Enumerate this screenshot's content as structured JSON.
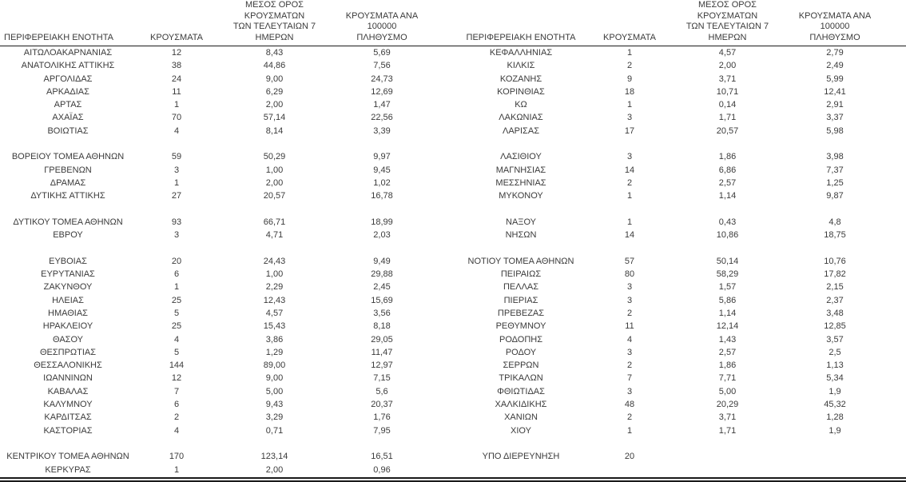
{
  "report": {
    "headers": {
      "region": "ΠΕΡΙΦΕΡΕΙΑΚΗ ΕΝΟΤΗΤΑ",
      "cases": "ΚΡΟΥΣΜΑΤΑ",
      "avg7": "ΜΕΣΟΣ ΟΡΟΣ ΚΡΟΥΣΜΑΤΩΝ\nΤΩΝ ΤΕΛΕΥΤΑΙΩΝ 7\nΗΜΕΡΩΝ",
      "per100k": "ΚΡΟΥΣΜΑΤΑ ΑΝΑ 100000\nΠΛΗΘΥΣΜΟ"
    },
    "columns": [
      "region",
      "cases",
      "avg7",
      "per100k"
    ],
    "colors": {
      "text": "#3b3b3b",
      "rule": "#1a1a1a",
      "background": "#ffffff"
    },
    "left_rows": [
      {
        "region": "ΑΙΤΩΛΟΑΚΑΡΝΑΝΙΑΣ",
        "cases": "12",
        "avg7": "8,43",
        "per100k": "5,69"
      },
      {
        "region": "ΑΝΑΤΟΛΙΚΗΣ ΑΤΤΙΚΗΣ",
        "cases": "38",
        "avg7": "44,86",
        "per100k": "7,56"
      },
      {
        "region": "ΑΡΓΟΛΙΔΑΣ",
        "cases": "24",
        "avg7": "9,00",
        "per100k": "24,73"
      },
      {
        "region": "ΑΡΚΑΔΙΑΣ",
        "cases": "11",
        "avg7": "6,29",
        "per100k": "12,69"
      },
      {
        "region": "ΑΡΤΑΣ",
        "cases": "1",
        "avg7": "2,00",
        "per100k": "1,47"
      },
      {
        "region": "ΑΧΑΪΑΣ",
        "cases": "70",
        "avg7": "57,14",
        "per100k": "22,56"
      },
      {
        "region": "ΒΟΙΩΤΙΑΣ",
        "cases": "4",
        "avg7": "8,14",
        "per100k": "3,39"
      },
      null,
      {
        "region": "ΒΟΡΕΙΟΥ ΤΟΜΕΑ ΑΘΗΝΩΝ",
        "cases": "59",
        "avg7": "50,29",
        "per100k": "9,97"
      },
      {
        "region": "ΓΡΕΒΕΝΩΝ",
        "cases": "3",
        "avg7": "1,00",
        "per100k": "9,45"
      },
      {
        "region": "ΔΡΑΜΑΣ",
        "cases": "1",
        "avg7": "2,00",
        "per100k": "1,02"
      },
      {
        "region": "ΔΥΤΙΚΗΣ ΑΤΤΙΚΗΣ",
        "cases": "27",
        "avg7": "20,57",
        "per100k": "16,78"
      },
      null,
      {
        "region": "ΔΥΤΙΚΟΥ ΤΟΜΕΑ ΑΘΗΝΩΝ",
        "cases": "93",
        "avg7": "66,71",
        "per100k": "18,99"
      },
      {
        "region": "ΕΒΡΟΥ",
        "cases": "3",
        "avg7": "4,71",
        "per100k": "2,03"
      },
      null,
      {
        "region": "ΕΥΒΟΙΑΣ",
        "cases": "20",
        "avg7": "24,43",
        "per100k": "9,49"
      },
      {
        "region": "ΕΥΡΥΤΑΝΙΑΣ",
        "cases": "6",
        "avg7": "1,00",
        "per100k": "29,88"
      },
      {
        "region": "ΖΑΚΥΝΘΟΥ",
        "cases": "1",
        "avg7": "2,29",
        "per100k": "2,45"
      },
      {
        "region": "ΗΛΕΙΑΣ",
        "cases": "25",
        "avg7": "12,43",
        "per100k": "15,69"
      },
      {
        "region": "ΗΜΑΘΙΑΣ",
        "cases": "5",
        "avg7": "4,57",
        "per100k": "3,56"
      },
      {
        "region": "ΗΡΑΚΛΕΙΟΥ",
        "cases": "25",
        "avg7": "15,43",
        "per100k": "8,18"
      },
      {
        "region": "ΘΑΣΟΥ",
        "cases": "4",
        "avg7": "3,86",
        "per100k": "29,05"
      },
      {
        "region": "ΘΕΣΠΡΩΤΙΑΣ",
        "cases": "5",
        "avg7": "1,29",
        "per100k": "11,47"
      },
      {
        "region": "ΘΕΣΣΑΛΟΝΙΚΗΣ",
        "cases": "144",
        "avg7": "89,00",
        "per100k": "12,97"
      },
      {
        "region": "ΙΩΑΝΝΙΝΩΝ",
        "cases": "12",
        "avg7": "9,00",
        "per100k": "7,15"
      },
      {
        "region": "ΚΑΒΑΛΑΣ",
        "cases": "7",
        "avg7": "5,00",
        "per100k": "5,6"
      },
      {
        "region": "ΚΑΛΥΜΝΟΥ",
        "cases": "6",
        "avg7": "9,43",
        "per100k": "20,37"
      },
      {
        "region": "ΚΑΡΔΙΤΣΑΣ",
        "cases": "2",
        "avg7": "3,29",
        "per100k": "1,76"
      },
      {
        "region": "ΚΑΣΤΟΡΙΑΣ",
        "cases": "4",
        "avg7": "0,71",
        "per100k": "7,95"
      },
      null,
      {
        "region": "ΚΕΝΤΡΙΚΟΥ ΤΟΜΕΑ ΑΘΗΝΩΝ",
        "cases": "170",
        "avg7": "123,14",
        "per100k": "16,51"
      },
      {
        "region": "ΚΕΡΚΥΡΑΣ",
        "cases": "1",
        "avg7": "2,00",
        "per100k": "0,96"
      }
    ],
    "right_rows": [
      {
        "region": "ΚΕΦΑΛΛΗΝΙΑΣ",
        "cases": "1",
        "avg7": "4,57",
        "per100k": "2,79"
      },
      {
        "region": "ΚΙΛΚΙΣ",
        "cases": "2",
        "avg7": "2,00",
        "per100k": "2,49"
      },
      {
        "region": "ΚΟΖΑΝΗΣ",
        "cases": "9",
        "avg7": "3,71",
        "per100k": "5,99"
      },
      {
        "region": "ΚΟΡΙΝΘΙΑΣ",
        "cases": "18",
        "avg7": "10,71",
        "per100k": "12,41"
      },
      {
        "region": "ΚΩ",
        "cases": "1",
        "avg7": "0,14",
        "per100k": "2,91"
      },
      {
        "region": "ΛΑΚΩΝΙΑΣ",
        "cases": "3",
        "avg7": "1,71",
        "per100k": "3,37"
      },
      {
        "region": "ΛΑΡΙΣΑΣ",
        "cases": "17",
        "avg7": "20,57",
        "per100k": "5,98"
      },
      null,
      {
        "region": "ΛΑΣΙΘΙΟΥ",
        "cases": "3",
        "avg7": "1,86",
        "per100k": "3,98"
      },
      {
        "region": "ΜΑΓΝΗΣΙΑΣ",
        "cases": "14",
        "avg7": "6,86",
        "per100k": "7,37"
      },
      {
        "region": "ΜΕΣΣΗΝΙΑΣ",
        "cases": "2",
        "avg7": "2,57",
        "per100k": "1,25"
      },
      {
        "region": "ΜΥΚΟΝΟΥ",
        "cases": "1",
        "avg7": "1,14",
        "per100k": "9,87"
      },
      null,
      {
        "region": "ΝΑΞΟΥ",
        "cases": "1",
        "avg7": "0,43",
        "per100k": "4,8"
      },
      {
        "region": "ΝΗΣΩΝ",
        "cases": "14",
        "avg7": "10,86",
        "per100k": "18,75"
      },
      null,
      {
        "region": "ΝΟΤΙΟΥ ΤΟΜΕΑ ΑΘΗΝΩΝ",
        "cases": "57",
        "avg7": "50,14",
        "per100k": "10,76"
      },
      {
        "region": "ΠΕΙΡΑΙΩΣ",
        "cases": "80",
        "avg7": "58,29",
        "per100k": "17,82"
      },
      {
        "region": "ΠΕΛΛΑΣ",
        "cases": "3",
        "avg7": "1,57",
        "per100k": "2,15"
      },
      {
        "region": "ΠΙΕΡΙΑΣ",
        "cases": "3",
        "avg7": "5,86",
        "per100k": "2,37"
      },
      {
        "region": "ΠΡΕΒΕΖΑΣ",
        "cases": "2",
        "avg7": "1,14",
        "per100k": "3,48"
      },
      {
        "region": "ΡΕΘΥΜΝΟΥ",
        "cases": "11",
        "avg7": "12,14",
        "per100k": "12,85"
      },
      {
        "region": "ΡΟΔΟΠΗΣ",
        "cases": "4",
        "avg7": "1,43",
        "per100k": "3,57"
      },
      {
        "region": "ΡΟΔΟΥ",
        "cases": "3",
        "avg7": "2,57",
        "per100k": "2,5"
      },
      {
        "region": "ΣΕΡΡΩΝ",
        "cases": "2",
        "avg7": "1,86",
        "per100k": "1,13"
      },
      {
        "region": "ΤΡΙΚΑΛΩΝ",
        "cases": "7",
        "avg7": "7,71",
        "per100k": "5,34"
      },
      {
        "region": "ΦΘΙΩΤΙΔΑΣ",
        "cases": "3",
        "avg7": "5,00",
        "per100k": "1,9"
      },
      {
        "region": "ΧΑΛΚΙΔΙΚΗΣ",
        "cases": "48",
        "avg7": "20,29",
        "per100k": "45,32"
      },
      {
        "region": "ΧΑΝΙΩΝ",
        "cases": "2",
        "avg7": "3,71",
        "per100k": "1,28"
      },
      {
        "region": "ΧΙΟΥ",
        "cases": "1",
        "avg7": "1,71",
        "per100k": "1,9"
      },
      null,
      {
        "region": "ΥΠΟ ΔΙΕΡΕΥΝΗΣΗ",
        "cases": "20",
        "avg7": "",
        "per100k": ""
      },
      null
    ]
  }
}
